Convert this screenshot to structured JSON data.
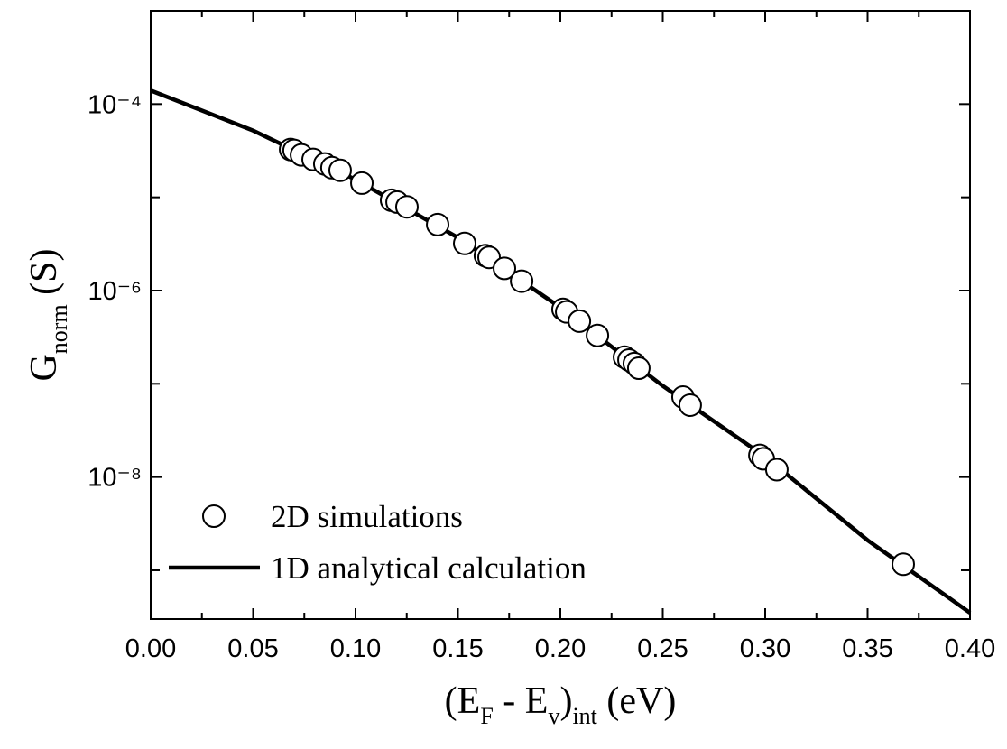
{
  "chart_data": {
    "type": "scatter",
    "xlabel": [
      {
        "text": "(E"
      },
      {
        "text": "F",
        "sub": true
      },
      {
        "text": " - E"
      },
      {
        "text": "v",
        "sub": true
      },
      {
        "text": ")"
      },
      {
        "text": "int",
        "sub": true
      },
      {
        "text": " (eV)"
      }
    ],
    "ylabel": [
      {
        "text": "G"
      },
      {
        "text": "norm",
        "sub": true
      },
      {
        "text": " (S)"
      }
    ],
    "xlim": [
      0,
      0.4
    ],
    "ylim": [
      3e-10,
      0.001
    ],
    "yscale": "log",
    "xticks": [
      {
        "value": 0,
        "label": "0.00"
      },
      {
        "value": 0.05,
        "label": "0.05"
      },
      {
        "value": 0.1,
        "label": "0.10"
      },
      {
        "value": 0.15,
        "label": "0.15"
      },
      {
        "value": 0.2,
        "label": "0.20"
      },
      {
        "value": 0.25,
        "label": "0.25"
      },
      {
        "value": 0.3,
        "label": "0.30"
      },
      {
        "value": 0.35,
        "label": "0.35"
      },
      {
        "value": 0.4,
        "label": "0.40"
      }
    ],
    "xticks_minor": [
      0.025,
      0.075,
      0.125,
      0.175,
      0.225,
      0.275,
      0.325,
      0.375
    ],
    "yticks": [
      {
        "value": 0.0001,
        "label": "10⁻⁴"
      },
      {
        "value": 1e-06,
        "label": "10⁻⁶"
      },
      {
        "value": 1e-08,
        "label": "10⁻⁸"
      }
    ],
    "yticks_minor": [
      0.001,
      1e-05,
      1e-07,
      1e-09
    ],
    "legend": "lower left",
    "series": [
      {
        "name": "2D simulations",
        "type": "scatter",
        "color": "#000000",
        "x": [
          0.0683,
          0.07,
          0.0736,
          0.0793,
          0.085,
          0.0885,
          0.0925,
          0.1031,
          0.1176,
          0.1203,
          0.1251,
          0.1401,
          0.1533,
          0.1634,
          0.1652,
          0.1727,
          0.1811,
          0.2013,
          0.2031,
          0.2093,
          0.2181,
          0.2313,
          0.2335,
          0.2361,
          0.2383,
          0.2599,
          0.2634,
          0.2974,
          0.2991,
          0.3057,
          0.3674
        ],
        "values": [
          3.26e-05,
          3.19e-05,
          2.85e-05,
          2.55e-05,
          2.28e-05,
          2.08e-05,
          1.95e-05,
          1.42e-05,
          9.3e-06,
          8.9e-06,
          7.9e-06,
          5.1e-06,
          3.2e-06,
          2.37e-06,
          2.27e-06,
          1.73e-06,
          1.26e-06,
          6.3e-07,
          5.9e-07,
          4.7e-07,
          3.3e-07,
          1.93e-07,
          1.8e-07,
          1.65e-07,
          1.47e-07,
          7.2e-08,
          5.9e-08,
          1.71e-08,
          1.57e-08,
          1.2e-08,
          1.16e-09
        ]
      },
      {
        "name": "1D analytical calculation",
        "type": "line",
        "color": "#000000",
        "x": [
          0,
          0.05,
          0.1,
          0.15,
          0.2,
          0.25,
          0.3,
          0.35,
          0.4
        ],
        "values": [
          0.00014,
          5.2e-05,
          1.55e-05,
          3.7e-06,
          6.6e-07,
          9.5e-08,
          1.65e-08,
          2.1e-09,
          3.5e-10
        ]
      }
    ]
  }
}
